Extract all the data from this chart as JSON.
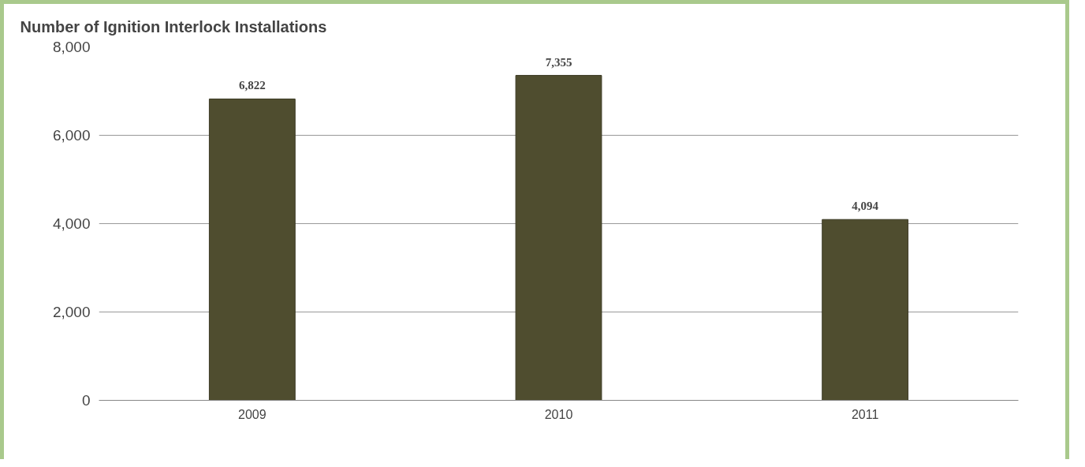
{
  "chart_data": {
    "type": "bar",
    "title": "Number of Ignition Interlock Installations",
    "categories": [
      "2009",
      "2010",
      "2011"
    ],
    "values": [
      6822,
      7355,
      4094
    ],
    "color": "#4f4d2f",
    "ylim": [
      0,
      8000
    ],
    "yticks": [
      {
        "value": 0,
        "label": "0"
      },
      {
        "value": 2000,
        "label": "2,000"
      },
      {
        "value": 4000,
        "label": "4,000"
      },
      {
        "value": 6000,
        "label": "6,000"
      },
      {
        "value": 8000,
        "label": "8,000"
      }
    ],
    "grid": "y",
    "value_labels": [
      "6,822",
      "7,355",
      "4,094"
    ]
  }
}
